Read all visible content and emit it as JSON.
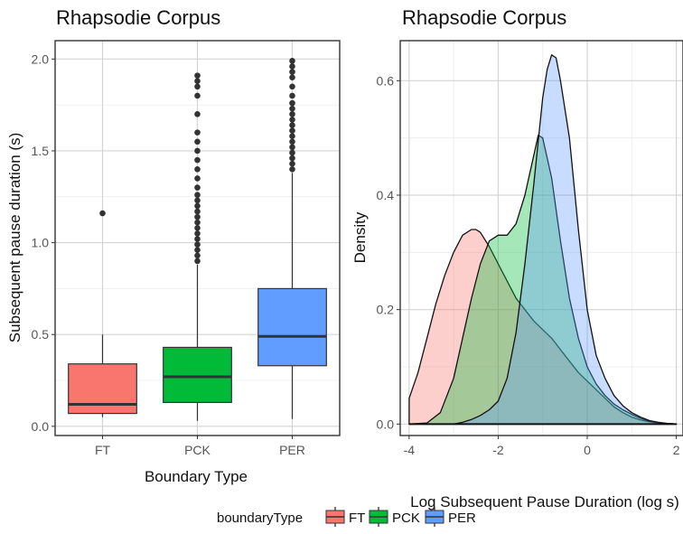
{
  "legend": {
    "title": "boundaryType",
    "items": [
      {
        "label": "FT",
        "color": "#F8766D"
      },
      {
        "label": "PCK",
        "color": "#00BA38"
      },
      {
        "label": "PER",
        "color": "#619CFF"
      }
    ]
  },
  "chart_data": [
    {
      "type": "box",
      "title": "Rhapsodie Corpus",
      "xlabel": "Boundary Type",
      "ylabel": "Subsequent pause duration (s)",
      "categories": [
        "FT",
        "PCK",
        "PER"
      ],
      "ylim": [
        -0.05,
        2.1
      ],
      "yticks": [
        0.0,
        0.5,
        1.0,
        1.5,
        2.0
      ],
      "ytick_labels": [
        "0.0",
        "0.5",
        "1.0",
        "1.5",
        "2.0"
      ],
      "grid": true,
      "boxes": [
        {
          "name": "FT",
          "color": "#F8766D",
          "min": 0.05,
          "q1": 0.07,
          "median": 0.12,
          "q3": 0.34,
          "max": 0.5,
          "outliers": [
            1.16
          ]
        },
        {
          "name": "PCK",
          "color": "#00BA38",
          "min": 0.03,
          "q1": 0.13,
          "median": 0.27,
          "q3": 0.43,
          "max": 0.88,
          "outliers": [
            0.9,
            0.93,
            0.96,
            0.99,
            1.02,
            1.05,
            1.08,
            1.11,
            1.14,
            1.17,
            1.2,
            1.23,
            1.26,
            1.3,
            1.35,
            1.4,
            1.45,
            1.5,
            1.55,
            1.6,
            1.7,
            1.8,
            1.85,
            1.88,
            1.91
          ]
        },
        {
          "name": "PER",
          "color": "#619CFF",
          "min": 0.04,
          "q1": 0.33,
          "median": 0.49,
          "q3": 0.75,
          "max": 1.38,
          "outliers": [
            1.4,
            1.43,
            1.46,
            1.49,
            1.52,
            1.55,
            1.58,
            1.61,
            1.64,
            1.67,
            1.7,
            1.73,
            1.76,
            1.8,
            1.85,
            1.9,
            1.93,
            1.96,
            1.99
          ]
        }
      ]
    },
    {
      "type": "area",
      "title": "Rhapsodie Corpus",
      "xlabel": "Log Subsequent Pause Duration (log s)",
      "ylabel": "Density",
      "xlim": [
        -4.2,
        2.15
      ],
      "ylim": [
        -0.02,
        0.67
      ],
      "xticks": [
        -4,
        -2,
        0,
        2
      ],
      "xtick_labels": [
        "-4",
        "-2",
        "0",
        "2"
      ],
      "yticks": [
        0.0,
        0.2,
        0.4,
        0.6
      ],
      "ytick_labels": [
        "0.0",
        "0.2",
        "0.4",
        "0.6"
      ],
      "grid": true,
      "series": [
        {
          "name": "FT",
          "color": "#F8766D",
          "x": [
            -4.0,
            -3.8,
            -3.6,
            -3.4,
            -3.2,
            -3.0,
            -2.8,
            -2.6,
            -2.5,
            -2.4,
            -2.2,
            -2.0,
            -1.8,
            -1.6,
            -1.4,
            -1.2,
            -1.0,
            -0.8,
            -0.6,
            -0.4,
            -0.2,
            0.0,
            0.2,
            0.4,
            0.6,
            0.8,
            1.0,
            1.2,
            1.4,
            1.6,
            1.8,
            2.0
          ],
          "y": [
            0.045,
            0.09,
            0.15,
            0.21,
            0.26,
            0.3,
            0.33,
            0.34,
            0.34,
            0.335,
            0.31,
            0.28,
            0.25,
            0.22,
            0.2,
            0.18,
            0.165,
            0.15,
            0.13,
            0.11,
            0.09,
            0.075,
            0.06,
            0.045,
            0.03,
            0.02,
            0.012,
            0.007,
            0.004,
            0.002,
            0.001,
            0.0
          ]
        },
        {
          "name": "PCK",
          "color": "#00BA38",
          "x": [
            -4.0,
            -3.6,
            -3.3,
            -3.0,
            -2.8,
            -2.6,
            -2.4,
            -2.2,
            -2.0,
            -1.8,
            -1.6,
            -1.4,
            -1.2,
            -1.1,
            -1.0,
            -0.8,
            -0.6,
            -0.4,
            -0.2,
            0.0,
            0.2,
            0.4,
            0.6,
            0.8,
            1.0,
            1.2,
            1.4,
            1.6,
            2.0
          ],
          "y": [
            0.0,
            0.002,
            0.02,
            0.08,
            0.15,
            0.22,
            0.28,
            0.32,
            0.33,
            0.33,
            0.35,
            0.4,
            0.47,
            0.505,
            0.5,
            0.43,
            0.32,
            0.22,
            0.15,
            0.1,
            0.07,
            0.05,
            0.035,
            0.025,
            0.017,
            0.01,
            0.005,
            0.002,
            0.0
          ]
        },
        {
          "name": "PER",
          "color": "#619CFF",
          "x": [
            -4.0,
            -3.0,
            -2.8,
            -2.6,
            -2.4,
            -2.2,
            -2.0,
            -1.8,
            -1.6,
            -1.4,
            -1.2,
            -1.0,
            -0.9,
            -0.8,
            -0.7,
            -0.6,
            -0.4,
            -0.2,
            0.0,
            0.2,
            0.4,
            0.6,
            0.8,
            1.0,
            1.2,
            1.4,
            1.6,
            1.8,
            2.0
          ],
          "y": [
            0.0,
            0.0,
            0.003,
            0.008,
            0.015,
            0.025,
            0.04,
            0.08,
            0.16,
            0.28,
            0.42,
            0.57,
            0.62,
            0.645,
            0.64,
            0.6,
            0.5,
            0.34,
            0.2,
            0.12,
            0.08,
            0.05,
            0.032,
            0.02,
            0.012,
            0.006,
            0.003,
            0.001,
            0.0
          ]
        }
      ]
    }
  ]
}
